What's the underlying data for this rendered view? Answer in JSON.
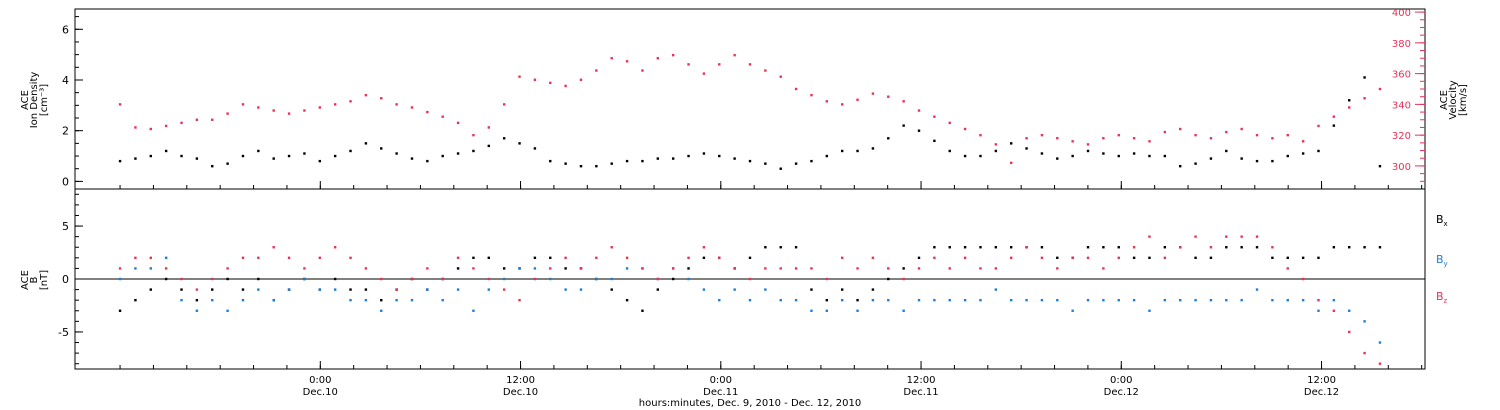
{
  "chart_data": [
    {
      "type": "scatter",
      "panel": "top",
      "ylabel_left": [
        "ACE",
        "Ion Density",
        "[cm⁻³]"
      ],
      "ylabel_right": [
        "ACE",
        "Velocity",
        "[km/s]"
      ],
      "ylim_left": [
        -0.3,
        6.8
      ],
      "yticks_left": [
        "0",
        "2",
        "4",
        "6"
      ],
      "ylim_right": [
        285,
        402
      ],
      "yticks_right": [
        "300",
        "320",
        "340",
        "360",
        "380",
        "400"
      ],
      "series": [
        {
          "name": "Ion Density",
          "axis": "left",
          "color": "#000000",
          "x": [
            0,
            1,
            2,
            3,
            4,
            5,
            6,
            7,
            8,
            9,
            10,
            11,
            12,
            13,
            14,
            15,
            16,
            17,
            18,
            19,
            20,
            21,
            22,
            23,
            24,
            25,
            26,
            27,
            28,
            29,
            30,
            31,
            32,
            33,
            34,
            35,
            36,
            37,
            38,
            39,
            40,
            41,
            42,
            43,
            44,
            45,
            46,
            47,
            48,
            49,
            50,
            51,
            52,
            53,
            54,
            55,
            56,
            57,
            58,
            59,
            60,
            61,
            62,
            63,
            64,
            65,
            66,
            67,
            68,
            69,
            70,
            71,
            72,
            73,
            74,
            75,
            76,
            77,
            78,
            79,
            80,
            81,
            82
          ],
          "y": [
            0.8,
            0.9,
            1.0,
            1.2,
            1.0,
            0.9,
            0.6,
            0.7,
            1.0,
            1.2,
            0.9,
            1.0,
            1.1,
            0.8,
            1.0,
            1.2,
            1.5,
            1.3,
            1.1,
            0.9,
            0.8,
            1.0,
            1.1,
            1.2,
            1.4,
            1.7,
            1.5,
            1.3,
            0.8,
            0.7,
            0.6,
            0.6,
            0.7,
            0.8,
            0.8,
            0.9,
            0.9,
            1.0,
            1.1,
            1.0,
            0.9,
            0.8,
            0.7,
            0.5,
            0.7,
            0.8,
            1.0,
            1.2,
            1.2,
            1.3,
            1.7,
            2.2,
            2.0,
            1.6,
            1.2,
            1.0,
            1.0,
            1.2,
            1.5,
            1.3,
            1.1,
            0.9,
            1.0,
            1.2,
            1.1,
            1.0,
            1.1,
            1.0,
            1.0,
            0.6,
            0.7,
            0.9,
            1.2,
            0.9,
            0.8,
            0.8,
            1.0,
            1.1,
            1.2,
            2.2,
            3.2,
            4.1,
            0.6
          ]
        },
        {
          "name": "Velocity",
          "axis": "right",
          "color": "#e8325a",
          "x": [
            0,
            1,
            2,
            3,
            4,
            5,
            6,
            7,
            8,
            9,
            10,
            11,
            12,
            13,
            14,
            15,
            16,
            17,
            18,
            19,
            20,
            21,
            22,
            23,
            24,
            25,
            26,
            27,
            28,
            29,
            30,
            31,
            32,
            33,
            34,
            35,
            36,
            37,
            38,
            39,
            40,
            41,
            42,
            43,
            44,
            45,
            46,
            47,
            48,
            49,
            50,
            51,
            52,
            53,
            54,
            55,
            56,
            57,
            58,
            59,
            60,
            61,
            62,
            63,
            64,
            65,
            66,
            67,
            68,
            69,
            70,
            71,
            72,
            73,
            74,
            75,
            76,
            77,
            78,
            79,
            80,
            81,
            82
          ],
          "y": [
            340,
            325,
            324,
            326,
            328,
            330,
            330,
            334,
            340,
            338,
            336,
            334,
            336,
            338,
            340,
            342,
            346,
            344,
            340,
            338,
            335,
            332,
            328,
            320,
            325,
            340,
            358,
            356,
            354,
            352,
            356,
            362,
            370,
            368,
            362,
            370,
            372,
            366,
            360,
            366,
            372,
            366,
            362,
            358,
            350,
            346,
            342,
            340,
            343,
            347,
            345,
            342,
            336,
            332,
            328,
            324,
            320,
            314,
            302,
            318,
            320,
            318,
            316,
            314,
            318,
            320,
            318,
            316,
            322,
            324,
            320,
            318,
            322,
            324,
            320,
            318,
            320,
            316,
            326,
            332,
            338,
            344,
            350
          ]
        }
      ]
    },
    {
      "type": "scatter",
      "panel": "bottom",
      "ylabel": [
        "ACE",
        "B",
        "[nT]"
      ],
      "ylim": [
        -8.5,
        8.5
      ],
      "yticks": [
        "-5",
        "0",
        "5"
      ],
      "xlabel": "hours:minutes, Dec. 9, 2010 - Dec. 12, 2010",
      "xlim_hours": [
        -14.7,
        66.2
      ],
      "xticks": [
        {
          "hour": 0,
          "time": "0:00",
          "date": "Dec.10"
        },
        {
          "hour": 12,
          "time": "12:00",
          "date": "Dec.10"
        },
        {
          "hour": 24,
          "time": "0:00",
          "date": "Dec.11"
        },
        {
          "hour": 36,
          "time": "12:00",
          "date": "Dec.11"
        },
        {
          "hour": 48,
          "time": "0:00",
          "date": "Dec.12"
        },
        {
          "hour": 60,
          "time": "12:00",
          "date": "Dec.12"
        }
      ],
      "series": [
        {
          "name": "Bx",
          "label_main": "B",
          "label_sub": "x",
          "color": "#000000",
          "x": [
            0,
            1,
            2,
            3,
            4,
            5,
            6,
            7,
            8,
            9,
            10,
            11,
            12,
            13,
            14,
            15,
            16,
            17,
            18,
            19,
            20,
            21,
            22,
            23,
            24,
            25,
            26,
            27,
            28,
            29,
            30,
            31,
            32,
            33,
            34,
            35,
            36,
            37,
            38,
            39,
            40,
            41,
            42,
            43,
            44,
            45,
            46,
            47,
            48,
            49,
            50,
            51,
            52,
            53,
            54,
            55,
            56,
            57,
            58,
            59,
            60,
            61,
            62,
            63,
            64,
            65,
            66,
            67,
            68,
            69,
            70,
            71,
            72,
            73,
            74,
            75,
            76,
            77,
            78,
            79,
            80,
            81,
            82
          ],
          "y": [
            -3,
            -2,
            -1,
            0,
            -1,
            -2,
            -1,
            0,
            -1,
            0,
            -2,
            -1,
            0,
            -1,
            0,
            -1,
            -1,
            -2,
            -1,
            0,
            -1,
            0,
            1,
            2,
            2,
            1,
            1,
            2,
            2,
            1,
            1,
            0,
            -1,
            -2,
            -3,
            -1,
            0,
            1,
            2,
            2,
            1,
            2,
            3,
            3,
            3,
            -1,
            -2,
            -1,
            -2,
            -1,
            0,
            1,
            2,
            3,
            3,
            3,
            3,
            3,
            3,
            3,
            3,
            2,
            2,
            3,
            3,
            3,
            2,
            2,
            3,
            3,
            2,
            2,
            3,
            3,
            3,
            2,
            2,
            2,
            2,
            3,
            3,
            3,
            3
          ]
        },
        {
          "name": "By",
          "label_main": "B",
          "label_sub": "y",
          "color": "#1c7fd6",
          "x": [
            0,
            1,
            2,
            3,
            4,
            5,
            6,
            7,
            8,
            9,
            10,
            11,
            12,
            13,
            14,
            15,
            16,
            17,
            18,
            19,
            20,
            21,
            22,
            23,
            24,
            25,
            26,
            27,
            28,
            29,
            30,
            31,
            32,
            33,
            34,
            35,
            36,
            37,
            38,
            39,
            40,
            41,
            42,
            43,
            44,
            45,
            46,
            47,
            48,
            49,
            50,
            51,
            52,
            53,
            54,
            55,
            56,
            57,
            58,
            59,
            60,
            61,
            62,
            63,
            64,
            65,
            66,
            67,
            68,
            69,
            70,
            71,
            72,
            73,
            74,
            75,
            76,
            77,
            78,
            79,
            80,
            81,
            82
          ],
          "y": [
            0,
            1,
            1,
            2,
            -2,
            -3,
            -2,
            -3,
            -2,
            -1,
            -2,
            -1,
            0,
            -1,
            -1,
            -2,
            -2,
            -3,
            -2,
            -2,
            -1,
            -2,
            -1,
            -3,
            -1,
            0,
            1,
            1,
            0,
            -1,
            -1,
            0,
            0,
            1,
            1,
            0,
            1,
            0,
            -1,
            -2,
            -1,
            -2,
            -1,
            -2,
            -2,
            -3,
            -3,
            -2,
            -3,
            -2,
            -2,
            -3,
            -2,
            -2,
            -2,
            -2,
            -2,
            -1,
            -2,
            -2,
            -2,
            -2,
            -3,
            -2,
            -2,
            -2,
            -2,
            -3,
            -2,
            -2,
            -2,
            -2,
            -2,
            -2,
            -1,
            -2,
            -2,
            -2,
            -3,
            -2,
            -3,
            -4,
            -6
          ]
        },
        {
          "name": "Bz",
          "label_main": "B",
          "label_sub": "z",
          "color": "#e8325a",
          "x": [
            0,
            1,
            2,
            3,
            4,
            5,
            6,
            7,
            8,
            9,
            10,
            11,
            12,
            13,
            14,
            15,
            16,
            17,
            18,
            19,
            20,
            21,
            22,
            23,
            24,
            25,
            26,
            27,
            28,
            29,
            30,
            31,
            32,
            33,
            34,
            35,
            36,
            37,
            38,
            39,
            40,
            41,
            42,
            43,
            44,
            45,
            46,
            47,
            48,
            49,
            50,
            51,
            52,
            53,
            54,
            55,
            56,
            57,
            58,
            59,
            60,
            61,
            62,
            63,
            64,
            65,
            66,
            67,
            68,
            69,
            70,
            71,
            72,
            73,
            74,
            75,
            76,
            77,
            78,
            79,
            80,
            81,
            82
          ],
          "y": [
            1,
            2,
            2,
            1,
            0,
            -1,
            0,
            1,
            2,
            2,
            3,
            2,
            1,
            2,
            3,
            2,
            1,
            0,
            -1,
            0,
            1,
            0,
            2,
            1,
            0,
            -1,
            -2,
            0,
            1,
            2,
            1,
            2,
            3,
            2,
            1,
            0,
            1,
            2,
            3,
            2,
            1,
            0,
            1,
            1,
            1,
            1,
            0,
            2,
            1,
            2,
            1,
            0,
            1,
            2,
            1,
            2,
            1,
            1,
            2,
            3,
            2,
            1,
            2,
            2,
            1,
            2,
            3,
            4,
            2,
            3,
            4,
            3,
            4,
            4,
            4,
            3,
            1,
            0,
            -2,
            -3,
            -5,
            -7,
            -8
          ]
        }
      ]
    }
  ]
}
